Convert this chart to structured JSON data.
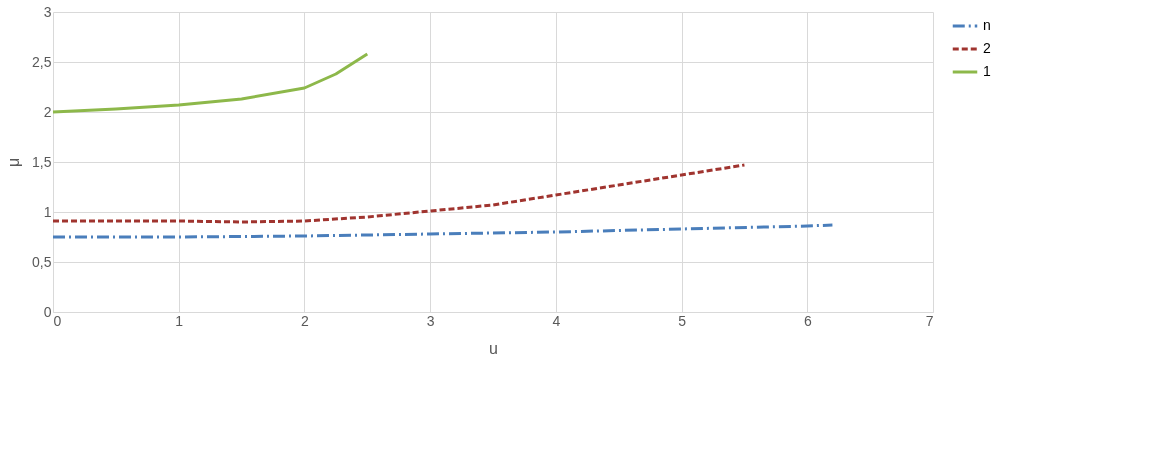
{
  "chart_data": {
    "type": "line",
    "xlabel": "u",
    "ylabel": "μ",
    "xlim": [
      0,
      7
    ],
    "xticks": [
      0,
      1,
      2,
      3,
      4,
      5,
      6,
      7
    ],
    "ylim": [
      0,
      3
    ],
    "yticks": [
      0,
      {
        "value": 0.5,
        "label": "0,5"
      },
      1,
      {
        "value": 1.5,
        "label": "1,5"
      },
      2,
      {
        "value": 2.5,
        "label": "2,5"
      },
      3
    ],
    "grid": true,
    "legend": "right",
    "marker": "none",
    "series": [
      {
        "name": "n",
        "color": "#4a7ebb",
        "line_style": "dashdot",
        "x": [
          0,
          1,
          2,
          3,
          4,
          5,
          6,
          6.2
        ],
        "values": [
          0.75,
          0.75,
          0.76,
          0.78,
          0.8,
          0.83,
          0.86,
          0.87
        ]
      },
      {
        "name": "2",
        "color": "#a0342f",
        "line_style": "dashed",
        "x": [
          0,
          1,
          1.5,
          2,
          2.5,
          3,
          3.5,
          4,
          4.5,
          5,
          5.5
        ],
        "values": [
          0.91,
          0.91,
          0.9,
          0.91,
          0.95,
          1.01,
          1.07,
          1.17,
          1.27,
          1.37,
          1.47
        ]
      },
      {
        "name": "1",
        "color": "#8db84a",
        "line_style": "solid",
        "x": [
          0,
          0.5,
          1,
          1.5,
          2,
          2.25,
          2.5
        ],
        "values": [
          2.0,
          2.03,
          2.07,
          2.13,
          2.24,
          2.38,
          2.58
        ]
      }
    ]
  }
}
